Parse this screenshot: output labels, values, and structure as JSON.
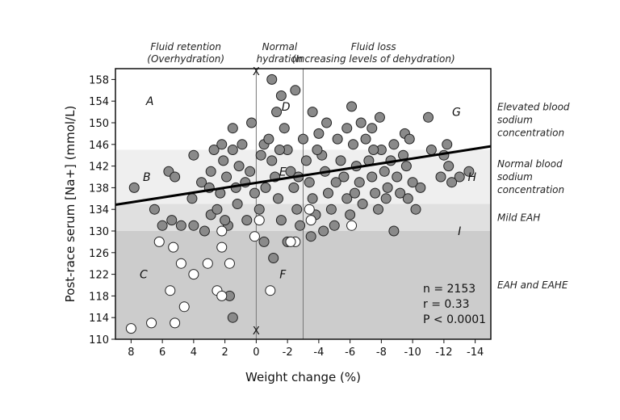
{
  "chart_data": {
    "type": "scatter",
    "xlabel": "Weight change (%)",
    "ylabel": "Post-race serum [Na+] (mmol/L)",
    "xlim": [
      9,
      -15
    ],
    "ylim": [
      110,
      160
    ],
    "x_ticks": [
      8,
      6,
      4,
      2,
      0,
      -2,
      -4,
      -6,
      -8,
      -10,
      -12,
      -14
    ],
    "x_tick_labels": [
      "8",
      "6",
      "4",
      "2",
      "0",
      "-2",
      "-4",
      "-6",
      "-8",
      "-10",
      "-12",
      "-14"
    ],
    "y_ticks": [
      110,
      114,
      118,
      122,
      126,
      130,
      134,
      138,
      142,
      146,
      150,
      154,
      158
    ],
    "grid": false,
    "bands": [
      {
        "from": 110,
        "to": 130,
        "color": "#cccccc"
      },
      {
        "from": 130,
        "to": 135,
        "color": "#e0e0e0"
      },
      {
        "from": 135,
        "to": 145,
        "color": "#efefef"
      }
    ],
    "vertical_lines": [
      0,
      -3
    ],
    "vertical_line_end_marks": [
      "X",
      "X"
    ],
    "top_headers": [
      {
        "lines": [
          "Fluid retention",
          "(Overhydration)"
        ],
        "x": 4.5
      },
      {
        "lines": [
          "Normal",
          "hydration"
        ],
        "x": -1.5
      },
      {
        "lines": [
          "Fluid loss",
          "(Increasing levels of dehydration)"
        ],
        "x": -7.5
      }
    ],
    "side_labels": [
      {
        "lines": [
          "Elevated blood",
          "sodium",
          "concentration"
        ],
        "y": 150.5
      },
      {
        "lines": [
          "Normal blood",
          "sodium",
          "concentration"
        ],
        "y": 140
      },
      {
        "lines": [
          "Mild EAH"
        ],
        "y": 132.5
      },
      {
        "lines": [
          "EAH and EAHE"
        ],
        "y": 120
      }
    ],
    "region_labels": [
      {
        "text": "A",
        "x": 6.8,
        "y": 154
      },
      {
        "text": "B",
        "x": 7.0,
        "y": 140
      },
      {
        "text": "C",
        "x": 7.2,
        "y": 122
      },
      {
        "text": "D",
        "x": -1.9,
        "y": 153
      },
      {
        "text": "E",
        "x": -1.7,
        "y": 141
      },
      {
        "text": "F",
        "x": -1.7,
        "y": 122
      },
      {
        "text": "G",
        "x": -12.8,
        "y": 152
      },
      {
        "text": "H",
        "x": -13.8,
        "y": 140
      },
      {
        "text": "I",
        "x": -13.0,
        "y": 130
      }
    ],
    "regression": {
      "slope": -0.45,
      "intercept": 138.9,
      "x_range": [
        9,
        -15
      ]
    },
    "stats": [
      "n = 2153",
      "r = 0.33",
      "P < 0.0001"
    ],
    "series": [
      {
        "marker": "#8a8a8a",
        "points": [
          [
            7.8,
            138
          ],
          [
            5.6,
            141
          ],
          [
            5.2,
            140
          ],
          [
            6.5,
            134
          ],
          [
            4.0,
            144
          ],
          [
            2.9,
            141
          ],
          [
            2.1,
            143
          ],
          [
            1.5,
            149
          ],
          [
            2.7,
            145
          ],
          [
            1.5,
            145
          ],
          [
            0.3,
            150
          ],
          [
            -1.0,
            158
          ],
          [
            -2.5,
            156
          ],
          [
            -1.6,
            155
          ],
          [
            -1.3,
            152
          ],
          [
            -3.6,
            152
          ],
          [
            -6.1,
            153
          ],
          [
            -7.9,
            151
          ],
          [
            -11.0,
            151
          ],
          [
            -6.7,
            150
          ],
          [
            -4.5,
            150
          ],
          [
            -5.8,
            149
          ],
          [
            -7.4,
            149
          ],
          [
            -9.5,
            148
          ],
          [
            -12.2,
            146
          ],
          [
            -11.2,
            145
          ],
          [
            -12.0,
            144
          ],
          [
            -12.3,
            142
          ],
          [
            -11.8,
            140
          ],
          [
            -13.0,
            140
          ],
          [
            -13.6,
            141
          ],
          [
            -12.5,
            139
          ],
          [
            -10.5,
            138
          ],
          [
            -9.7,
            136
          ],
          [
            -10.2,
            134
          ],
          [
            -8.8,
            130
          ],
          [
            -4.3,
            130
          ],
          [
            -1.1,
            125
          ],
          [
            1.8,
            131
          ],
          [
            0.6,
            132
          ],
          [
            -0.5,
            128
          ],
          [
            -2.0,
            128
          ],
          [
            -3.5,
            129
          ],
          [
            1.7,
            118
          ],
          [
            1.5,
            114
          ],
          [
            2.9,
            133
          ],
          [
            4.1,
            136
          ],
          [
            5.4,
            132
          ],
          [
            4.8,
            131
          ],
          [
            6.0,
            131
          ],
          [
            4.0,
            131
          ],
          [
            3.3,
            130
          ],
          [
            3.5,
            139
          ],
          [
            3.0,
            138
          ],
          [
            2.3,
            137
          ],
          [
            2.5,
            134
          ],
          [
            2.0,
            132
          ],
          [
            1.2,
            135
          ],
          [
            0.7,
            139
          ],
          [
            0.4,
            141
          ],
          [
            0.1,
            137
          ],
          [
            -0.2,
            134
          ],
          [
            -0.5,
            146
          ],
          [
            -0.3,
            144
          ],
          [
            -0.8,
            147
          ],
          [
            -1.0,
            143
          ],
          [
            -1.2,
            140
          ],
          [
            -1.4,
            136
          ],
          [
            -1.6,
            132
          ],
          [
            -1.8,
            149
          ],
          [
            -2.0,
            145
          ],
          [
            -2.2,
            141
          ],
          [
            -2.4,
            138
          ],
          [
            -2.6,
            134
          ],
          [
            -2.8,
            131
          ],
          [
            -3.0,
            147
          ],
          [
            -3.2,
            143
          ],
          [
            -3.4,
            139
          ],
          [
            -3.6,
            136
          ],
          [
            -3.8,
            133
          ],
          [
            -4.0,
            148
          ],
          [
            -4.2,
            144
          ],
          [
            -4.4,
            141
          ],
          [
            -4.6,
            137
          ],
          [
            -4.8,
            134
          ],
          [
            -5.0,
            131
          ],
          [
            -5.2,
            147
          ],
          [
            -5.4,
            143
          ],
          [
            -5.6,
            140
          ],
          [
            -5.8,
            136
          ],
          [
            -6.0,
            133
          ],
          [
            -6.2,
            146
          ],
          [
            -6.4,
            142
          ],
          [
            -6.6,
            139
          ],
          [
            -6.8,
            135
          ],
          [
            -7.0,
            147
          ],
          [
            -7.2,
            143
          ],
          [
            -7.4,
            140
          ],
          [
            -7.6,
            137
          ],
          [
            -7.8,
            134
          ],
          [
            -8.0,
            145
          ],
          [
            -8.2,
            141
          ],
          [
            -8.4,
            138
          ],
          [
            -8.6,
            143
          ],
          [
            -8.8,
            146
          ],
          [
            -9.0,
            140
          ],
          [
            -9.2,
            137
          ],
          [
            -9.4,
            144
          ],
          [
            -9.6,
            142
          ],
          [
            -9.8,
            147
          ],
          [
            -10.0,
            139
          ],
          [
            0.9,
            146
          ],
          [
            1.1,
            142
          ],
          [
            1.3,
            138
          ],
          [
            1.9,
            140
          ],
          [
            2.2,
            146
          ],
          [
            -0.6,
            138
          ],
          [
            -1.5,
            145
          ],
          [
            -2.7,
            140
          ],
          [
            -3.9,
            145
          ],
          [
            -5.1,
            139
          ],
          [
            -6.3,
            137
          ],
          [
            -7.5,
            145
          ],
          [
            -8.3,
            136
          ]
        ]
      },
      {
        "marker": "#ffffff",
        "points": [
          [
            8.0,
            112
          ],
          [
            6.7,
            113
          ],
          [
            5.2,
            113
          ],
          [
            6.2,
            128
          ],
          [
            5.3,
            127
          ],
          [
            4.8,
            124
          ],
          [
            4.0,
            122
          ],
          [
            3.1,
            124
          ],
          [
            5.5,
            119
          ],
          [
            4.6,
            116
          ],
          [
            2.5,
            119
          ],
          [
            2.2,
            118
          ],
          [
            1.7,
            124
          ],
          [
            2.2,
            127
          ],
          [
            2.2,
            130
          ],
          [
            0.1,
            129
          ],
          [
            -0.9,
            119
          ],
          [
            -2.5,
            128
          ],
          [
            -2.2,
            128
          ],
          [
            -3.4,
            134
          ],
          [
            -3.5,
            132
          ],
          [
            -6.1,
            131
          ],
          [
            -0.2,
            132
          ]
        ]
      }
    ]
  }
}
